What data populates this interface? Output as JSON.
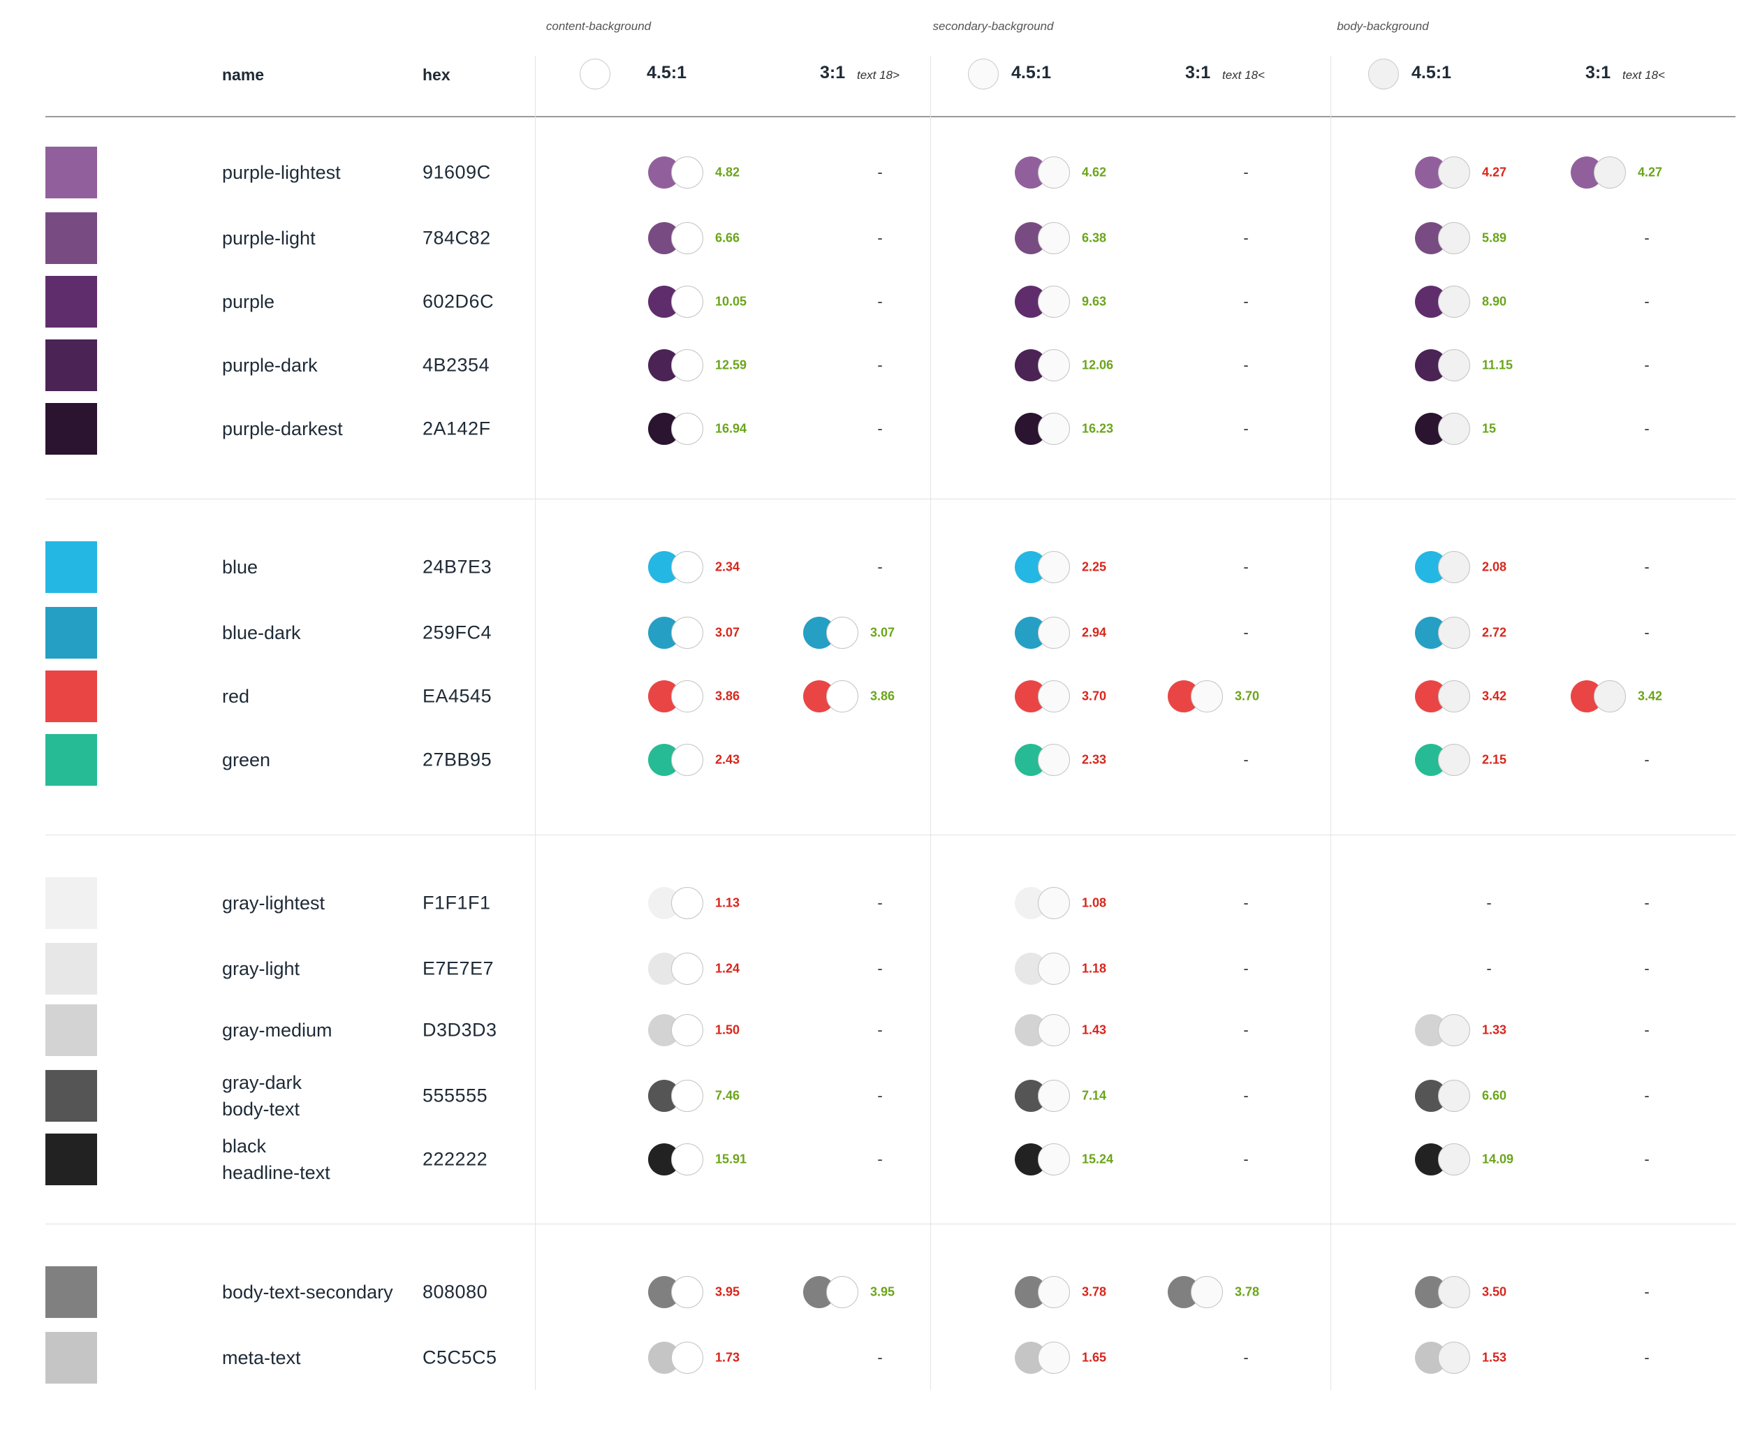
{
  "colors": {
    "pass": "#6aa51a",
    "fail": "#d8261c"
  },
  "header": {
    "groups": [
      {
        "label": "content-background",
        "bg": "#ffffff"
      },
      {
        "label": "secondary-background",
        "bg": "#fafafa"
      },
      {
        "label": "body-background",
        "bg": "#f1f1f1"
      }
    ],
    "name": "name",
    "hex": "hex",
    "ratio_a": "4.5:1",
    "ratio_b": "3:1",
    "notes": [
      "text 18>",
      "text 18<",
      "text 18<"
    ]
  },
  "sections": [
    {
      "rows": [
        {
          "name": "purple-lightest",
          "hex": "91609C",
          "color": "#91609C",
          "cells": [
            [
              "4.82",
              "pass"
            ],
            "-",
            [
              "4.62",
              "pass"
            ],
            "-",
            [
              "4.27",
              "fail"
            ],
            [
              "4.27",
              "pass"
            ]
          ]
        },
        {
          "name": "purple-light",
          "hex": "784C82",
          "color": "#784C82",
          "cells": [
            [
              "6.66",
              "pass"
            ],
            "-",
            [
              "6.38",
              "pass"
            ],
            "-",
            [
              "5.89",
              "pass"
            ],
            "-"
          ]
        },
        {
          "name": "purple",
          "hex": "602D6C",
          "color": "#602D6C",
          "cells": [
            [
              "10.05",
              "pass"
            ],
            "-",
            [
              "9.63",
              "pass"
            ],
            "-",
            [
              "8.90",
              "pass"
            ],
            "-"
          ]
        },
        {
          "name": "purple-dark",
          "hex": "4B2354",
          "color": "#4B2354",
          "cells": [
            [
              "12.59",
              "pass"
            ],
            "-",
            [
              "12.06",
              "pass"
            ],
            "-",
            [
              "11.15",
              "pass"
            ],
            "-"
          ]
        },
        {
          "name": "purple-darkest",
          "hex": "2A142F",
          "color": "#2A142F",
          "cells": [
            [
              "16.94",
              "pass"
            ],
            "-",
            [
              "16.23",
              "pass"
            ],
            "-",
            [
              "15",
              "pass"
            ],
            "-"
          ]
        }
      ]
    },
    {
      "rows": [
        {
          "name": "blue",
          "hex": "24B7E3",
          "color": "#24B7E3",
          "cells": [
            [
              "2.34",
              "fail"
            ],
            "-",
            [
              "2.25",
              "fail"
            ],
            "-",
            [
              "2.08",
              "fail"
            ],
            "-"
          ]
        },
        {
          "name": "blue-dark",
          "hex": "259FC4",
          "color": "#259FC4",
          "cells": [
            [
              "3.07",
              "fail"
            ],
            [
              "3.07",
              "pass"
            ],
            [
              "2.94",
              "fail"
            ],
            "-",
            [
              "2.72",
              "fail"
            ],
            "-"
          ]
        },
        {
          "name": "red",
          "hex": "EA4545",
          "color": "#EA4545",
          "cells": [
            [
              "3.86",
              "fail"
            ],
            [
              "3.86",
              "pass"
            ],
            [
              "3.70",
              "fail"
            ],
            [
              "3.70",
              "pass"
            ],
            [
              "3.42",
              "fail"
            ],
            [
              "3.42",
              "pass"
            ]
          ]
        },
        {
          "name": "green",
          "hex": "27BB95",
          "color": "#27BB95",
          "cells": [
            [
              "2.43",
              "fail"
            ],
            "",
            [
              "2.33",
              "fail"
            ],
            "-",
            [
              "2.15",
              "fail"
            ],
            "-"
          ]
        }
      ]
    },
    {
      "rows": [
        {
          "name": "gray-lightest",
          "hex": "F1F1F1",
          "color": "#F1F1F1",
          "cells": [
            [
              "1.13",
              "fail"
            ],
            "-",
            [
              "1.08",
              "fail"
            ],
            "-",
            "-",
            "-"
          ]
        },
        {
          "name": "gray-light",
          "hex": "E7E7E7",
          "color": "#E7E7E7",
          "cells": [
            [
              "1.24",
              "fail"
            ],
            "-",
            [
              "1.18",
              "fail"
            ],
            "-",
            "-",
            "-"
          ]
        },
        {
          "name": "gray-medium",
          "hex": "D3D3D3",
          "color": "#D3D3D3",
          "cells": [
            [
              "1.50",
              "fail"
            ],
            "-",
            [
              "1.43",
              "fail"
            ],
            "-",
            [
              "1.33",
              "fail"
            ],
            "-"
          ]
        },
        {
          "name": "gray-dark",
          "name2": "body-text",
          "hex": "555555",
          "color": "#555555",
          "cells": [
            [
              "7.46",
              "pass"
            ],
            "-",
            [
              "7.14",
              "pass"
            ],
            "-",
            [
              "6.60",
              "pass"
            ],
            "-"
          ]
        },
        {
          "name": "black",
          "name2": "headline-text",
          "hex": "222222",
          "color": "#222222",
          "cells": [
            [
              "15.91",
              "pass"
            ],
            "-",
            [
              "15.24",
              "pass"
            ],
            "-",
            [
              "14.09",
              "pass"
            ],
            "-"
          ]
        }
      ]
    },
    {
      "rows": [
        {
          "name": "body-text-secondary",
          "hex": "808080",
          "color": "#808080",
          "cells": [
            [
              "3.95",
              "fail"
            ],
            [
              "3.95",
              "pass"
            ],
            [
              "3.78",
              "fail"
            ],
            [
              "3.78",
              "pass"
            ],
            [
              "3.50",
              "fail"
            ],
            "-"
          ]
        },
        {
          "name": "meta-text",
          "hex": "C5C5C5",
          "color": "#C5C5C5",
          "cells": [
            [
              "1.73",
              "fail"
            ],
            "-",
            [
              "1.65",
              "fail"
            ],
            "-",
            [
              "1.53",
              "fail"
            ],
            "-"
          ]
        }
      ]
    }
  ]
}
